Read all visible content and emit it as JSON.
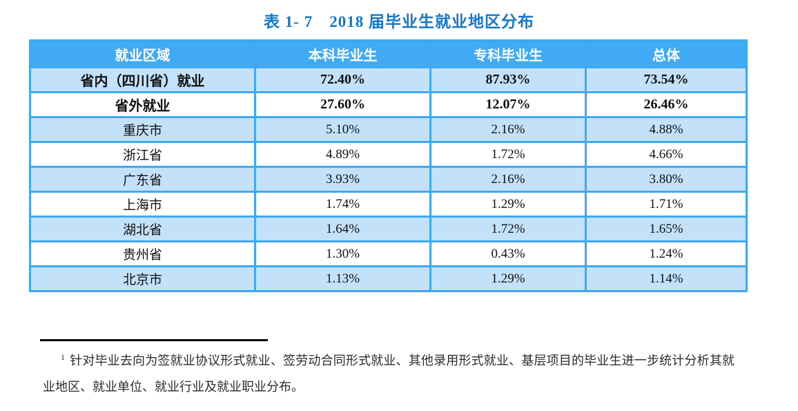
{
  "title": "表 1- 7　2018 届毕业生就业地区分布",
  "table": {
    "headers": [
      "就业区域",
      "本科毕业生",
      "专科毕业生",
      "总体"
    ],
    "rows": [
      [
        "省内（四川省）就业",
        "72.40%",
        "87.93%",
        "73.54%"
      ],
      [
        "省外就业",
        "27.60%",
        "12.07%",
        "26.46%"
      ],
      [
        "重庆市",
        "5.10%",
        "2.16%",
        "4.88%"
      ],
      [
        "浙江省",
        "4.89%",
        "1.72%",
        "4.66%"
      ],
      [
        "广东省",
        "3.93%",
        "2.16%",
        "3.80%"
      ],
      [
        "上海市",
        "1.74%",
        "1.29%",
        "1.71%"
      ],
      [
        "湖北省",
        "1.64%",
        "1.72%",
        "1.65%"
      ],
      [
        "贵州省",
        "1.30%",
        "0.43%",
        "1.24%"
      ],
      [
        "北京市",
        "1.13%",
        "1.29%",
        "1.14%"
      ]
    ]
  },
  "footnote": {
    "marker": "1",
    "text": "针对毕业去向为签就业协议形式就业、签劳动合同形式就业、其他录用形式就业、基层项目的毕业生进一步统计分析其就业地区、就业单位、就业行业及就业职业分布。"
  },
  "colors": {
    "title_blue": "#1478c9",
    "header_bg": "#40aaf5",
    "table_border": "#3fa8f0",
    "shaded_row_bg": "#c3e2fa",
    "footnote_text": "#2b2b2b"
  }
}
